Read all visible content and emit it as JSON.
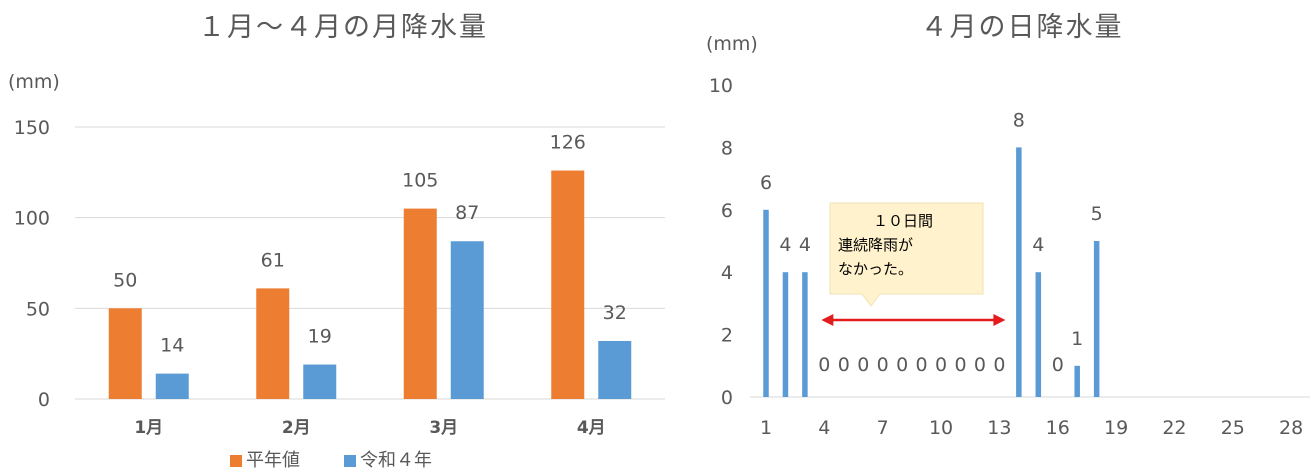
{
  "colors": {
    "orange": "#ED7D31",
    "blue": "#5B9BD5",
    "grid": "#D9D9D9",
    "arrow": "#E31B1B",
    "callout_fill": "#FFF2CC",
    "callout_stroke": "#F2E3B3"
  },
  "chart_data": [
    {
      "type": "bar",
      "title": "１月～４月の月降水量",
      "unit": "(mm)",
      "categories": [
        "1月",
        "2月",
        "3月",
        "4月"
      ],
      "series": [
        {
          "name": "平年値",
          "values": [
            50,
            61,
            105,
            126
          ]
        },
        {
          "name": "令和４年",
          "values": [
            14,
            19,
            87,
            32
          ]
        }
      ],
      "ylim": [
        0,
        150
      ],
      "yticks": [
        0,
        50,
        100,
        150
      ],
      "grid": true,
      "legend": "bottom"
    },
    {
      "type": "bar",
      "title": "４月の日降水量",
      "unit": "(mm)",
      "x": [
        1,
        2,
        3,
        4,
        5,
        6,
        7,
        8,
        9,
        10,
        11,
        12,
        13,
        14,
        15,
        16,
        17,
        18
      ],
      "values": [
        6,
        4,
        4,
        0,
        0,
        0,
        0,
        0,
        0,
        0,
        0,
        0,
        0,
        8,
        4,
        0,
        1,
        5
      ],
      "data_labels": [
        "6",
        "4",
        "4",
        "0",
        "0",
        "0",
        "0",
        "0",
        "0",
        "0",
        "0",
        "0",
        "0",
        "8",
        "4",
        "0",
        "1",
        "5"
      ],
      "xlim": [
        1,
        30
      ],
      "xticks": [
        "1",
        "4",
        "7",
        "10",
        "13",
        "16",
        "19",
        "22",
        "25",
        "28"
      ],
      "ylim": [
        0,
        10
      ],
      "yticks": [
        0,
        2,
        4,
        6,
        8,
        10
      ],
      "grid": false,
      "annotation": {
        "lines": [
          "１０日間",
          "連続降雨が",
          "なかった。"
        ],
        "from_day": 4,
        "to_day": 13
      }
    }
  ]
}
